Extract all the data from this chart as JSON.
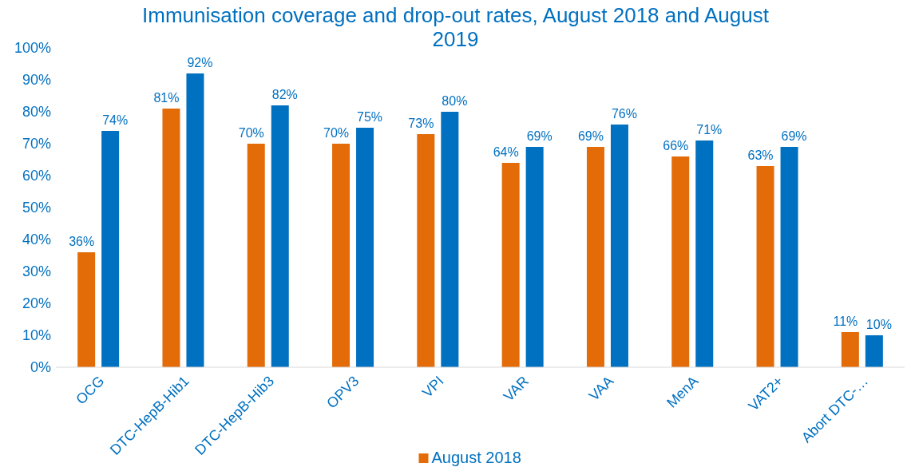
{
  "chart_data": {
    "type": "bar",
    "title": "Immunisation coverage and drop-out rates, August 2018 and August 2019",
    "categories": [
      "OCG",
      "DTC-HepB-Hib1",
      "DTC-HepB-Hib3",
      "OPV3",
      "VPI",
      "VAR",
      "VAA",
      "MenA",
      "VAT2+",
      "Abort DTC-…"
    ],
    "series": [
      {
        "name": "August 2018",
        "color": "#e36c09",
        "values": [
          36,
          81,
          70,
          70,
          73,
          64,
          69,
          66,
          63,
          11
        ],
        "value_labels": [
          "36%",
          "81%",
          "70%",
          "70%",
          "73%",
          "64%",
          "69%",
          "66%",
          "63%",
          "11%"
        ]
      },
      {
        "color": "#0070c0",
        "values": [
          74,
          92,
          82,
          75,
          80,
          69,
          76,
          71,
          69,
          10
        ],
        "value_labels": [
          "74%",
          "92%",
          "82%",
          "75%",
          "80%",
          "69%",
          "76%",
          "71%",
          "69%",
          "10%"
        ]
      }
    ],
    "ylim": [
      0,
      100
    ],
    "yticks": [
      {
        "value": 0,
        "label": "0%"
      },
      {
        "value": 10,
        "label": "10%"
      },
      {
        "value": 20,
        "label": "20%"
      },
      {
        "value": 30,
        "label": "30%"
      },
      {
        "value": 40,
        "label": "40%"
      },
      {
        "value": 50,
        "label": "50%"
      },
      {
        "value": 60,
        "label": "60%"
      },
      {
        "value": 70,
        "label": "70%"
      },
      {
        "value": 80,
        "label": "80%"
      },
      {
        "value": 90,
        "label": "90%"
      },
      {
        "value": 100,
        "label": "100%"
      }
    ],
    "grid": false,
    "legend": "bottom"
  }
}
